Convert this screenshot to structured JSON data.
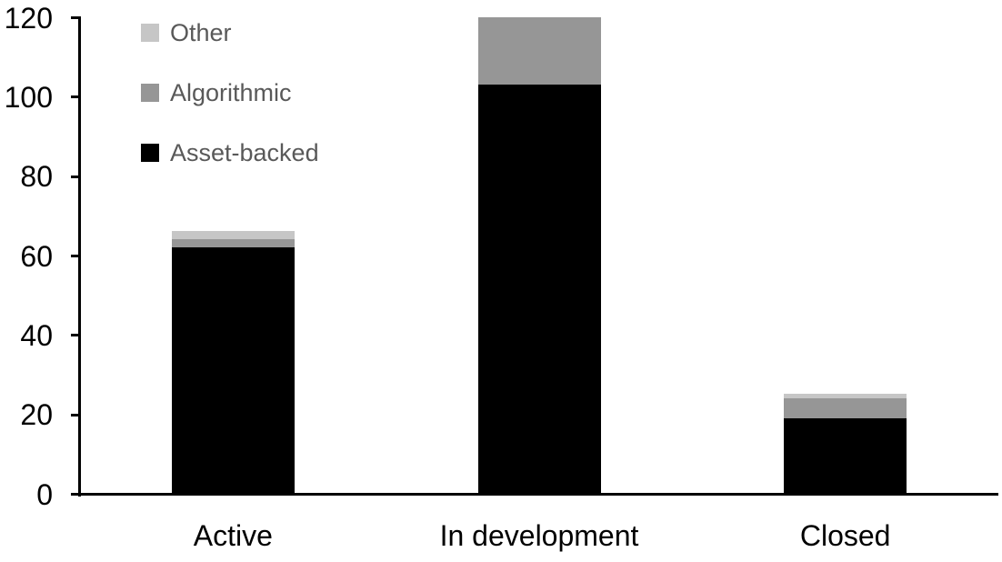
{
  "chart_data": {
    "type": "bar",
    "stacked": true,
    "title": "",
    "xlabel": "",
    "ylabel": "",
    "categories": [
      "Active",
      "In development",
      "Closed"
    ],
    "series": [
      {
        "name": "Asset-backed",
        "color": "#000000",
        "values": [
          62,
          103,
          19
        ]
      },
      {
        "name": "Algorithmic",
        "color": "#969696",
        "values": [
          2,
          17,
          5
        ]
      },
      {
        "name": "Other",
        "color": "#c6c6c6",
        "values": [
          2,
          0,
          1
        ]
      }
    ],
    "totals": [
      66,
      120,
      25
    ],
    "ylim": [
      0,
      120
    ],
    "y_ticks": [
      0,
      20,
      40,
      60,
      80,
      100,
      120
    ],
    "grid": false,
    "legend_position": "top-left"
  },
  "legend": {
    "items": [
      {
        "label": "Other",
        "color": "#c6c6c6"
      },
      {
        "label": "Algorithmic",
        "color": "#969696"
      },
      {
        "label": "Asset-backed",
        "color": "#000000"
      }
    ]
  },
  "colors": {
    "axis": "#000000",
    "tick_label_text": "#000000",
    "category_label_text": "#000000",
    "legend_text": "#595959",
    "background": "#ffffff"
  }
}
